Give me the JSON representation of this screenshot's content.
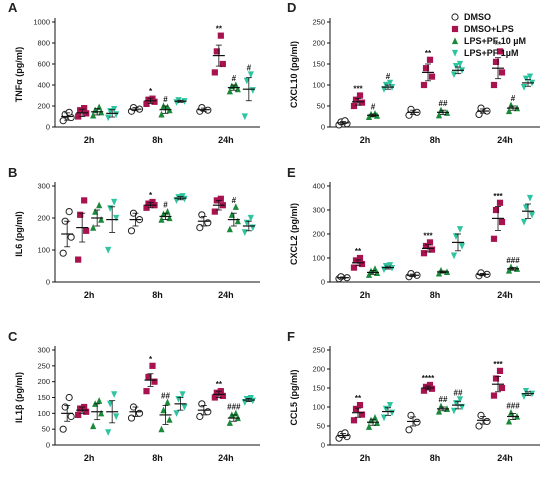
{
  "chart_data": [
    {
      "panel": "A",
      "type": "scatter",
      "ylabel": "TNFα (pg/ml)",
      "categories": [
        "2h",
        "8h",
        "24h"
      ],
      "ylim": [
        0,
        1000
      ],
      "yticks": [
        0,
        200,
        400,
        600,
        800,
        1000
      ],
      "ytick_labels": [
        "0",
        "200",
        "400",
        "600",
        "800",
        "1000"
      ],
      "groups": [
        {
          "series": "DMSO",
          "x": "2h",
          "mean": 100,
          "sem": 35,
          "points": [
            60,
            90,
            120,
            140
          ]
        },
        {
          "series": "DMSO+LPS",
          "x": "2h",
          "mean": 135,
          "sem": 35,
          "points": [
            100,
            130,
            160,
            180
          ]
        },
        {
          "series": "LPS+PF 10 µM",
          "x": "2h",
          "mean": 145,
          "sem": 30,
          "points": [
            110,
            140,
            160,
            190
          ]
        },
        {
          "series": "LPS+PF 1µM",
          "x": "2h",
          "mean": 130,
          "sem": 35,
          "points": [
            90,
            120,
            150,
            170
          ]
        },
        {
          "series": "DMSO",
          "x": "8h",
          "mean": 170,
          "sem": 15,
          "points": [
            150,
            170,
            185
          ]
        },
        {
          "series": "DMSO+LPS",
          "x": "8h",
          "mean": 250,
          "sem": 25,
          "points": [
            220,
            240,
            260,
            270
          ],
          "sig": "*"
        },
        {
          "series": "LPS+PF 10 µM",
          "x": "8h",
          "mean": 165,
          "sem": 35,
          "points": [
            120,
            160,
            200,
            190
          ],
          "sig": "#"
        },
        {
          "series": "LPS+PF 1µM",
          "x": "8h",
          "mean": 245,
          "sem": 10,
          "points": [
            235,
            245,
            255
          ]
        },
        {
          "series": "DMSO",
          "x": "24h",
          "mean": 165,
          "sem": 15,
          "points": [
            150,
            160,
            185
          ]
        },
        {
          "series": "DMSO+LPS",
          "x": "24h",
          "mean": 680,
          "sem": 100,
          "points": [
            520,
            600,
            720,
            870
          ],
          "sig": "**"
        },
        {
          "series": "LPS+PF 10 µM",
          "x": "24h",
          "mean": 375,
          "sem": 25,
          "points": [
            340,
            360,
            390,
            400
          ],
          "sig": "#"
        },
        {
          "series": "LPS+PF 1µM",
          "x": "24h",
          "mean": 360,
          "sem": 110,
          "points": [
            100,
            350,
            440,
            500
          ],
          "sig": "#"
        }
      ]
    },
    {
      "panel": "B",
      "type": "scatter",
      "ylabel": "IL6 (pg/ml)",
      "categories": [
        "2h",
        "8h",
        "24h"
      ],
      "ylim": [
        0,
        300
      ],
      "yticks": [
        0,
        100,
        200,
        300
      ],
      "ytick_labels": [
        "0",
        "100",
        "200",
        "300"
      ],
      "groups": [
        {
          "series": "DMSO",
          "x": "2h",
          "mean": 150,
          "sem": 40,
          "points": [
            90,
            140,
            190,
            220
          ]
        },
        {
          "series": "DMSO+LPS",
          "x": "2h",
          "mean": 170,
          "sem": 45,
          "points": [
            70,
            160,
            210,
            255
          ]
        },
        {
          "series": "LPS+PF 10 µM",
          "x": "2h",
          "mean": 200,
          "sem": 25,
          "points": [
            170,
            195,
            220,
            240
          ]
        },
        {
          "series": "LPS+PF 1µM",
          "x": "2h",
          "mean": 195,
          "sem": 40,
          "points": [
            100,
            200,
            230,
            250
          ]
        },
        {
          "series": "DMSO",
          "x": "8h",
          "mean": 195,
          "sem": 20,
          "points": [
            160,
            195,
            215
          ]
        },
        {
          "series": "DMSO+LPS",
          "x": "8h",
          "mean": 240,
          "sem": 8,
          "points": [
            232,
            240,
            245,
            250
          ],
          "sig": "*"
        },
        {
          "series": "LPS+PF 10 µM",
          "x": "8h",
          "mean": 205,
          "sem": 10,
          "points": [
            195,
            200,
            212,
            220
          ],
          "sig": "#"
        },
        {
          "series": "LPS+PF 1µM",
          "x": "8h",
          "mean": 262,
          "sem": 5,
          "points": [
            255,
            260,
            265,
            268
          ]
        },
        {
          "series": "DMSO",
          "x": "24h",
          "mean": 190,
          "sem": 15,
          "points": [
            170,
            185,
            210
          ]
        },
        {
          "series": "DMSO+LPS",
          "x": "24h",
          "mean": 240,
          "sem": 15,
          "points": [
            220,
            240,
            255,
            260
          ]
        },
        {
          "series": "LPS+PF 10 µM",
          "x": "24h",
          "mean": 195,
          "sem": 20,
          "points": [
            165,
            190,
            210,
            235
          ],
          "sig": "#"
        },
        {
          "series": "LPS+PF 1µM",
          "x": "24h",
          "mean": 175,
          "sem": 15,
          "points": [
            155,
            170,
            185,
            200
          ]
        }
      ]
    },
    {
      "panel": "C",
      "type": "scatter",
      "ylabel": "IL1β (pg/ml)",
      "categories": [
        "2h",
        "8h",
        "24h"
      ],
      "ylim": [
        0,
        300
      ],
      "yticks": [
        0,
        50,
        100,
        150,
        200,
        250,
        300
      ],
      "ytick_labels": [
        "0",
        "50",
        "100",
        "150",
        "200",
        "250",
        "300"
      ],
      "groups": [
        {
          "series": "DMSO",
          "x": "2h",
          "mean": 100,
          "sem": 25,
          "points": [
            50,
            90,
            120,
            150
          ]
        },
        {
          "series": "DMSO+LPS",
          "x": "2h",
          "mean": 110,
          "sem": 10,
          "points": [
            95,
            105,
            115,
            120
          ]
        },
        {
          "series": "LPS+PF 10 µM",
          "x": "2h",
          "mean": 105,
          "sem": 25,
          "points": [
            60,
            100,
            130,
            140
          ]
        },
        {
          "series": "LPS+PF 1µM",
          "x": "2h",
          "mean": 105,
          "sem": 35,
          "points": [
            40,
            90,
            130,
            160
          ]
        },
        {
          "series": "DMSO",
          "x": "8h",
          "mean": 105,
          "sem": 15,
          "points": [
            85,
            100,
            120
          ]
        },
        {
          "series": "DMSO+LPS",
          "x": "8h",
          "mean": 205,
          "sem": 20,
          "points": [
            170,
            200,
            215,
            250
          ],
          "sig": "*"
        },
        {
          "series": "LPS+PF 10 µM",
          "x": "8h",
          "mean": 95,
          "sem": 30,
          "points": [
            50,
            80,
            110,
            135
          ],
          "sig": "##"
        },
        {
          "series": "LPS+PF 1µM",
          "x": "8h",
          "mean": 130,
          "sem": 20,
          "points": [
            100,
            120,
            145,
            160
          ]
        },
        {
          "series": "DMSO",
          "x": "24h",
          "mean": 110,
          "sem": 15,
          "points": [
            90,
            105,
            130
          ]
        },
        {
          "series": "DMSO+LPS",
          "x": "24h",
          "mean": 160,
          "sem": 10,
          "points": [
            150,
            155,
            165,
            170
          ],
          "sig": "**"
        },
        {
          "series": "LPS+PF 10 µM",
          "x": "24h",
          "mean": 85,
          "sem": 10,
          "points": [
            70,
            85,
            95,
            100
          ],
          "sig": "###"
        },
        {
          "series": "LPS+PF 1µM",
          "x": "24h",
          "mean": 142,
          "sem": 5,
          "points": [
            135,
            140,
            145,
            148
          ]
        }
      ]
    },
    {
      "panel": "D",
      "type": "scatter",
      "ylabel": "CXCL10 (pg/ml)",
      "categories": [
        "2h",
        "8h",
        "24h"
      ],
      "ylim": [
        0,
        250
      ],
      "yticks": [
        0,
        50,
        100,
        150,
        200,
        250
      ],
      "ytick_labels": [
        "0",
        "50",
        "100",
        "150",
        "200",
        "250"
      ],
      "groups": [
        {
          "series": "DMSO",
          "x": "2h",
          "mean": 10,
          "sem": 3,
          "points": [
            5,
            8,
            12,
            15
          ]
        },
        {
          "series": "DMSO+LPS",
          "x": "2h",
          "mean": 60,
          "sem": 8,
          "points": [
            50,
            58,
            65,
            75
          ],
          "sig": "***"
        },
        {
          "series": "LPS+PF 10 µM",
          "x": "2h",
          "mean": 28,
          "sem": 3,
          "points": [
            24,
            27,
            30,
            32
          ],
          "sig": "#"
        },
        {
          "series": "LPS+PF 1µM",
          "x": "2h",
          "mean": 95,
          "sem": 5,
          "points": [
            90,
            95,
            100,
            105
          ],
          "sig": "#"
        },
        {
          "series": "DMSO",
          "x": "8h",
          "mean": 35,
          "sem": 5,
          "points": [
            28,
            35,
            42
          ]
        },
        {
          "series": "DMSO+LPS",
          "x": "8h",
          "mean": 130,
          "sem": 20,
          "points": [
            100,
            120,
            140,
            160
          ],
          "sig": "**"
        },
        {
          "series": "LPS+PF 10 µM",
          "x": "8h",
          "mean": 35,
          "sem": 5,
          "points": [
            28,
            34,
            40
          ],
          "sig": "##"
        },
        {
          "series": "LPS+PF 1µM",
          "x": "8h",
          "mean": 135,
          "sem": 8,
          "points": [
            125,
            135,
            145,
            150
          ]
        },
        {
          "series": "DMSO",
          "x": "24h",
          "mean": 38,
          "sem": 5,
          "points": [
            30,
            38,
            45
          ]
        },
        {
          "series": "DMSO+LPS",
          "x": "24h",
          "mean": 140,
          "sem": 25,
          "points": [
            100,
            130,
            155,
            180
          ],
          "sig": "**"
        },
        {
          "series": "LPS+PF 10 µM",
          "x": "24h",
          "mean": 45,
          "sem": 5,
          "points": [
            38,
            45,
            52
          ],
          "sig": "#"
        },
        {
          "series": "LPS+PF 1µM",
          "x": "24h",
          "mean": 105,
          "sem": 8,
          "points": [
            95,
            105,
            115,
            120
          ]
        }
      ]
    },
    {
      "panel": "E",
      "type": "scatter",
      "ylabel": "CXCL2 (pg/ml)",
      "categories": [
        "2h",
        "8h",
        "24h"
      ],
      "ylim": [
        0,
        400
      ],
      "yticks": [
        0,
        100,
        200,
        300,
        400
      ],
      "ytick_labels": [
        "0",
        "100",
        "200",
        "300",
        "400"
      ],
      "groups": [
        {
          "series": "DMSO",
          "x": "2h",
          "mean": 18,
          "sem": 3,
          "points": [
            14,
            18,
            22
          ]
        },
        {
          "series": "DMSO+LPS",
          "x": "2h",
          "mean": 80,
          "sem": 12,
          "points": [
            60,
            75,
            90,
            100
          ],
          "sig": "**"
        },
        {
          "series": "LPS+PF 10 µM",
          "x": "2h",
          "mean": 40,
          "sem": 8,
          "points": [
            30,
            38,
            45,
            55
          ]
        },
        {
          "series": "LPS+PF 1µM",
          "x": "2h",
          "mean": 60,
          "sem": 6,
          "points": [
            52,
            58,
            66,
            70
          ]
        },
        {
          "series": "DMSO",
          "x": "8h",
          "mean": 28,
          "sem": 5,
          "points": [
            22,
            28,
            35
          ]
        },
        {
          "series": "DMSO+LPS",
          "x": "8h",
          "mean": 140,
          "sem": 15,
          "points": [
            120,
            135,
            150,
            165
          ],
          "sig": "***"
        },
        {
          "series": "LPS+PF 10 µM",
          "x": "8h",
          "mean": 42,
          "sem": 4,
          "points": [
            36,
            42,
            48
          ]
        },
        {
          "series": "LPS+PF 1µM",
          "x": "8h",
          "mean": 165,
          "sem": 35,
          "points": [
            110,
            150,
            190,
            220
          ]
        },
        {
          "series": "DMSO",
          "x": "24h",
          "mean": 32,
          "sem": 4,
          "points": [
            26,
            32,
            38
          ]
        },
        {
          "series": "DMSO+LPS",
          "x": "24h",
          "mean": 265,
          "sem": 50,
          "points": [
            180,
            250,
            300,
            330
          ],
          "sig": "***"
        },
        {
          "series": "LPS+PF 10 µM",
          "x": "24h",
          "mean": 55,
          "sem": 6,
          "points": [
            48,
            55,
            62
          ],
          "sig": "###"
        },
        {
          "series": "LPS+PF 1µM",
          "x": "24h",
          "mean": 295,
          "sem": 30,
          "points": [
            250,
            280,
            310,
            350
          ]
        }
      ]
    },
    {
      "panel": "F",
      "type": "scatter",
      "ylabel": "CCL5 (pg/ml)",
      "categories": [
        "2h",
        "8h",
        "24h"
      ],
      "ylim": [
        0,
        250
      ],
      "yticks": [
        0,
        50,
        100,
        150,
        200,
        250
      ],
      "ytick_labels": [
        "0",
        "50",
        "100",
        "150",
        "200",
        "250"
      ],
      "groups": [
        {
          "series": "DMSO",
          "x": "2h",
          "mean": 25,
          "sem": 5,
          "points": [
            18,
            22,
            28,
            32
          ]
        },
        {
          "series": "DMSO+LPS",
          "x": "2h",
          "mean": 85,
          "sem": 12,
          "points": [
            65,
            80,
            95,
            105
          ],
          "sig": "**"
        },
        {
          "series": "LPS+PF 10 µM",
          "x": "2h",
          "mean": 60,
          "sem": 8,
          "points": [
            48,
            58,
            65,
            72
          ]
        },
        {
          "series": "LPS+PF 1µM",
          "x": "2h",
          "mean": 88,
          "sem": 10,
          "points": [
            72,
            85,
            95,
            105
          ]
        },
        {
          "series": "DMSO",
          "x": "8h",
          "mean": 62,
          "sem": 12,
          "points": [
            40,
            60,
            78
          ]
        },
        {
          "series": "DMSO+LPS",
          "x": "8h",
          "mean": 150,
          "sem": 5,
          "points": [
            143,
            148,
            153,
            158
          ],
          "sig": "****"
        },
        {
          "series": "LPS+PF 10 µM",
          "x": "8h",
          "mean": 95,
          "sem": 5,
          "points": [
            88,
            95,
            102
          ],
          "sig": "##"
        },
        {
          "series": "LPS+PF 1µM",
          "x": "8h",
          "mean": 105,
          "sem": 10,
          "points": [
            90,
            100,
            110,
            120
          ],
          "sig": "##"
        },
        {
          "series": "DMSO",
          "x": "24h",
          "mean": 65,
          "sem": 10,
          "points": [
            50,
            62,
            78
          ]
        },
        {
          "series": "DMSO+LPS",
          "x": "24h",
          "mean": 160,
          "sem": 20,
          "points": [
            130,
            150,
            175,
            195
          ],
          "sig": "***"
        },
        {
          "series": "LPS+PF 10 µM",
          "x": "24h",
          "mean": 75,
          "sem": 8,
          "points": [
            62,
            75,
            85
          ],
          "sig": "###"
        },
        {
          "series": "LPS+PF 1µM",
          "x": "24h",
          "mean": 135,
          "sem": 5,
          "points": [
            128,
            135,
            142
          ]
        }
      ]
    }
  ],
  "legend": {
    "placement": "top-right",
    "items": [
      {
        "label": "DMSO",
        "color": "#222222",
        "marker": "circle-open"
      },
      {
        "label": "DMSO+LPS",
        "color": "#a8124f",
        "marker": "square"
      },
      {
        "label": "LPS+PF 10 µM",
        "color": "#1a8a3a",
        "marker": "triangle-up"
      },
      {
        "label": "LPS+PF 1µM",
        "color": "#2ec4a0",
        "marker": "triangle-down"
      }
    ]
  },
  "colors": {
    "DMSO": "#222222",
    "DMSO+LPS": "#a8124f",
    "LPS+PF 10 µM": "#1a8a3a",
    "LPS+PF 1µM": "#2ec4a0"
  }
}
